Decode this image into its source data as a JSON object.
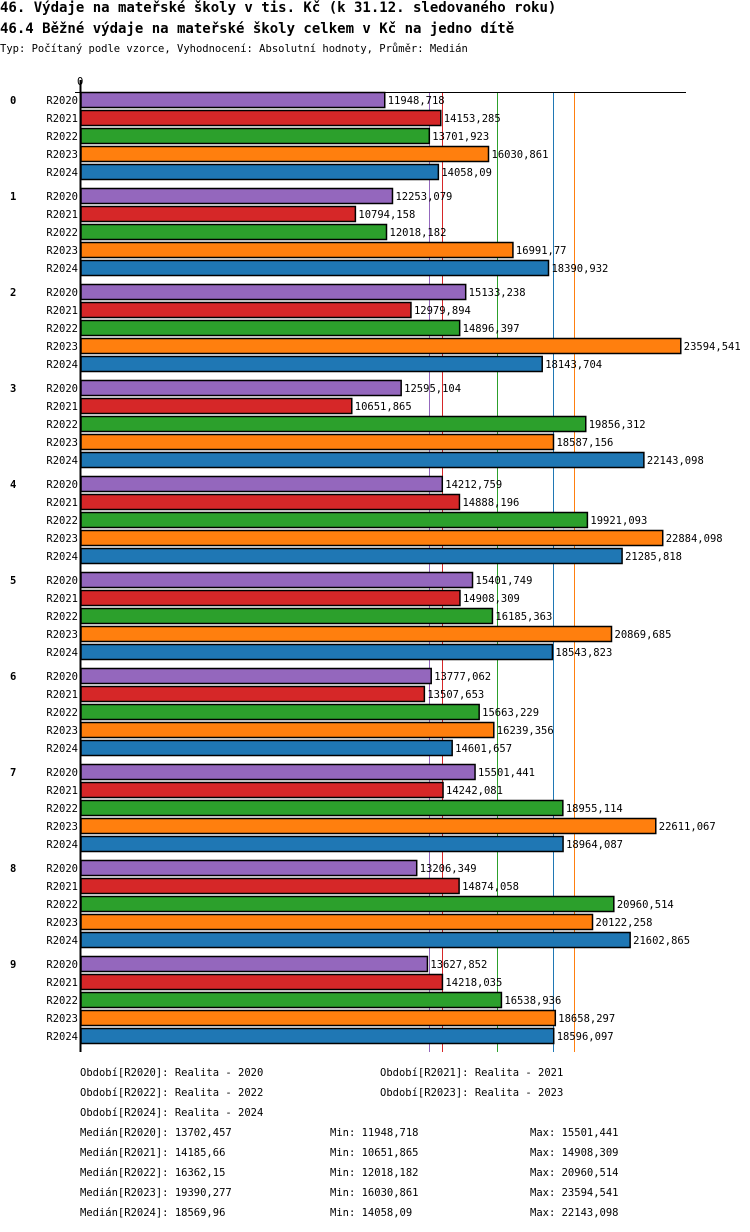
{
  "header": {
    "title": "46. Výdaje na mateřské školy v tis. Kč (k 31.12. sledovaného roku)",
    "subtitle": "46.4 Běžné výdaje na mateřské školy celkem v Kč na jedno dítě",
    "info": "Typ: Počítaný podle vzorce, Vyhodnocení: Absolutní hodnoty, Průměr: Medián"
  },
  "chart_data": {
    "type": "bar",
    "orientation": "horizontal",
    "x_tick_label": "0",
    "categories": [
      "0",
      "1",
      "2",
      "3",
      "4",
      "5",
      "6",
      "7",
      "8",
      "9"
    ],
    "series": [
      {
        "name": "R2020",
        "color": "#9467bd",
        "values": [
          "11948,718",
          "12253,079",
          "15133,238",
          "12595,104",
          "14212,759",
          "15401,749",
          "13777,062",
          "15501,441",
          "13206,349",
          "13627,852"
        ]
      },
      {
        "name": "R2021",
        "color": "#d62728",
        "values": [
          "14153,285",
          "10794,158",
          "12979,894",
          "10651,865",
          "14888,196",
          "14908,309",
          "13507,653",
          "14242,081",
          "14874,058",
          "14218,035"
        ]
      },
      {
        "name": "R2022",
        "color": "#2ca02c",
        "values": [
          "13701,923",
          "12018,182",
          "14896,397",
          "19856,312",
          "19921,093",
          "16185,363",
          "15663,229",
          "18955,114",
          "20960,514",
          "16538,936"
        ]
      },
      {
        "name": "R2023",
        "color": "#ff7f0e",
        "values": [
          "16030,861",
          "16991,77",
          "23594,541",
          "18587,156",
          "22884,098",
          "20869,685",
          "16239,356",
          "22611,067",
          "20122,258",
          "18658,297"
        ]
      },
      {
        "name": "R2024",
        "color": "#1f77b4",
        "values": [
          "14058,09",
          "18390,932",
          "18143,704",
          "22143,098",
          "21285,818",
          "18543,823",
          "14601,657",
          "18964,087",
          "21602,865",
          "18596,097"
        ]
      }
    ],
    "medians": {
      "R2020": "13702,457",
      "R2021": "14185,66",
      "R2022": "16362,15",
      "R2023": "19390,277",
      "R2024": "18569,96"
    }
  },
  "footer": {
    "periods": [
      "Období[R2020]: Realita - 2020",
      "Období[R2021]: Realita - 2021",
      "Období[R2022]: Realita - 2022",
      "Období[R2023]: Realita - 2023",
      "Období[R2024]: Realita - 2024"
    ],
    "stats": [
      {
        "median": "Medián[R2020]: 13702,457",
        "min": "Min: 11948,718",
        "max": "Max: 15501,441"
      },
      {
        "median": "Medián[R2021]: 14185,66",
        "min": "Min: 10651,865",
        "max": "Max: 14908,309"
      },
      {
        "median": "Medián[R2022]: 16362,15",
        "min": "Min: 12018,182",
        "max": "Max: 20960,514"
      },
      {
        "median": "Medián[R2023]: 19390,277",
        "min": "Min: 16030,861",
        "max": "Max: 23594,541"
      },
      {
        "median": "Medián[R2024]: 18569,96",
        "min": "Min: 14058,09",
        "max": "Max: 22143,098"
      }
    ]
  }
}
